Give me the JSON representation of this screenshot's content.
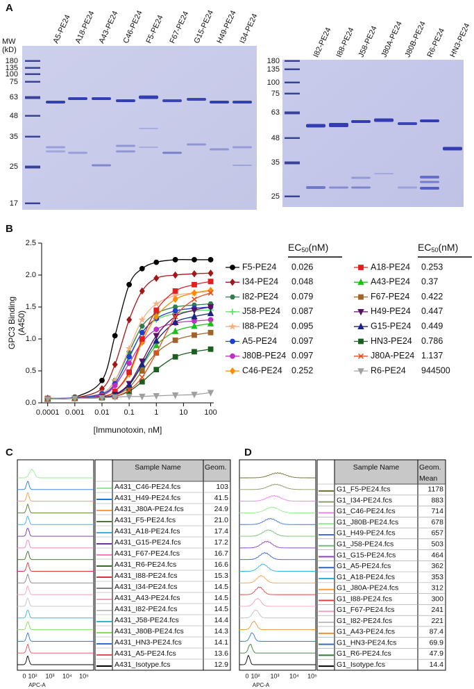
{
  "panel_labels": [
    "A",
    "B",
    "C",
    "D"
  ],
  "gel_left": {
    "mw_title": [
      "MW",
      "(kD)"
    ],
    "mw": [
      180,
      135,
      100,
      75,
      63,
      48,
      35,
      25,
      17
    ],
    "lanes": [
      "A5-PE24",
      "A18-PE24",
      "A43-PE24",
      "C46-PE24",
      "F5-PE24",
      "F67-PE24",
      "G15-PE24",
      "H49-PE24",
      "I34-PE24"
    ]
  },
  "gel_right": {
    "mw": [
      180,
      135,
      100,
      75,
      63,
      48,
      35,
      25
    ],
    "lanes": [
      "I82-PE24",
      "I88-PE24",
      "J58-PE24",
      "J80A-PE24",
      "J80B-PE24",
      "R6-PE24",
      "HN3-PE24"
    ]
  },
  "chart_data": {
    "type": "line",
    "y_label": [
      "GPC3 Binding",
      "(A450)"
    ],
    "x_label": "[Immunotoxin, nM]",
    "ec50_label": "EC",
    "ec50_sub": "50",
    "ec50_unit": "(nM)",
    "xscale": "log",
    "xlim": [
      6e-05,
      130
    ],
    "xticks": [
      0.0001,
      0.001,
      0.01,
      0.1,
      1,
      10,
      100
    ],
    "ylim": [
      0,
      2.5
    ],
    "yticks": [
      {
        "value": 0,
        "label": "0.0"
      },
      {
        "value": 0.5,
        "label": "0.5"
      },
      {
        "value": 1,
        "label": "1.0"
      },
      {
        "value": 1.5,
        "label": "1.5"
      },
      {
        "value": 2,
        "label": "2.0"
      },
      {
        "value": 2.5,
        "label": "2.5"
      }
    ],
    "x": [
      0.0001,
      0.001,
      0.01,
      0.03,
      0.1,
      0.3,
      1,
      5,
      25,
      100
    ],
    "series": [
      {
        "name": "F5-PE24",
        "ec50": 0.026,
        "color": "#000000",
        "marker": "circle",
        "values": [
          0.07,
          0.09,
          0.35,
          1.05,
          1.85,
          2.1,
          2.2,
          2.24,
          2.24,
          2.24
        ]
      },
      {
        "name": "I34-PE24",
        "ec50": 0.048,
        "color": "#a01818",
        "marker": "diamond",
        "values": [
          0.07,
          0.08,
          0.22,
          0.6,
          1.3,
          1.75,
          1.95,
          2.0,
          2.02,
          2.03
        ]
      },
      {
        "name": "I82-PE24",
        "ec50": 0.079,
        "color": "#2e7d4a",
        "marker": "hexagon",
        "values": [
          0.07,
          0.08,
          0.15,
          0.35,
          0.8,
          1.2,
          1.4,
          1.5,
          1.53,
          1.55
        ]
      },
      {
        "name": "J58-PE24",
        "ec50": 0.087,
        "color": "#5ce05c",
        "marker": "plus",
        "values": [
          0.06,
          0.07,
          0.13,
          0.3,
          0.7,
          1.1,
          1.3,
          1.4,
          1.44,
          1.45
        ]
      },
      {
        "name": "I88-PE24",
        "ec50": 0.095,
        "color": "#f4b183",
        "marker": "star",
        "values": [
          0.07,
          0.08,
          0.15,
          0.35,
          0.85,
          1.3,
          1.55,
          1.68,
          1.72,
          1.75
        ]
      },
      {
        "name": "A5-PE24",
        "ec50": 0.097,
        "color": "#1f3fcf",
        "marker": "circle",
        "values": [
          0.07,
          0.08,
          0.14,
          0.3,
          0.72,
          1.1,
          1.32,
          1.44,
          1.48,
          1.5
        ]
      },
      {
        "name": "J80B-PE24",
        "ec50": 0.097,
        "color": "#c030c0",
        "marker": "circle",
        "values": [
          0.06,
          0.07,
          0.12,
          0.27,
          0.62,
          0.95,
          1.15,
          1.25,
          1.28,
          1.3
        ]
      },
      {
        "name": "C46-PE24",
        "ec50": 0.252,
        "color": "#ff8c00",
        "marker": "diamond",
        "values": [
          0.07,
          0.07,
          0.1,
          0.18,
          0.45,
          0.95,
          1.35,
          1.62,
          1.72,
          1.76
        ]
      },
      {
        "name": "A18-PE24",
        "ec50": 0.253,
        "color": "#e02020",
        "marker": "square",
        "values": [
          0.07,
          0.07,
          0.1,
          0.18,
          0.48,
          1.0,
          1.45,
          1.75,
          1.85,
          1.9
        ]
      },
      {
        "name": "A43-PE24",
        "ec50": 0.37,
        "color": "#22bb22",
        "marker": "triangle",
        "values": [
          0.07,
          0.07,
          0.09,
          0.13,
          0.28,
          0.58,
          0.9,
          1.12,
          1.2,
          1.24
        ]
      },
      {
        "name": "F67-PE24",
        "ec50": 0.422,
        "color": "#a0632a",
        "marker": "square",
        "values": [
          0.06,
          0.07,
          0.08,
          0.12,
          0.24,
          0.5,
          0.78,
          0.98,
          1.06,
          1.1
        ]
      },
      {
        "name": "H49-PE24",
        "ec50": 0.447,
        "color": "#5a1060",
        "marker": "triangle-down",
        "values": [
          0.06,
          0.07,
          0.09,
          0.13,
          0.3,
          0.65,
          1.05,
          1.35,
          1.45,
          1.5
        ]
      },
      {
        "name": "G15-PE24",
        "ec50": 0.449,
        "color": "#1a237e",
        "marker": "triangle",
        "values": [
          0.06,
          0.07,
          0.09,
          0.12,
          0.28,
          0.6,
          0.97,
          1.26,
          1.35,
          1.4
        ]
      },
      {
        "name": "HN3-PE24",
        "ec50": 0.786,
        "color": "#1b5e20",
        "marker": "square",
        "values": [
          0.06,
          0.07,
          0.08,
          0.1,
          0.18,
          0.33,
          0.52,
          0.72,
          0.8,
          0.84
        ]
      },
      {
        "name": "J80A-PE24",
        "ec50": 1.137,
        "color": "#e85020",
        "marker": "x",
        "values": [
          0.06,
          0.07,
          0.08,
          0.1,
          0.2,
          0.4,
          0.78,
          1.35,
          1.62,
          1.72
        ]
      },
      {
        "name": "R6-PE24",
        "ec50": 944500,
        "color": "#a0a0a0",
        "marker": "triangle-down",
        "values": [
          0.06,
          0.07,
          0.08,
          0.09,
          0.1,
          0.1,
          0.11,
          0.12,
          0.13,
          0.16
        ]
      }
    ]
  },
  "flow_c": {
    "x_ticks": [
      "0",
      "10²",
      "10³",
      "10⁴",
      "10⁵"
    ],
    "x_title": "APC-A",
    "header": {
      "name": "Sample Name",
      "value": [
        "Geom."
      ]
    },
    "rows": [
      {
        "name": "A431_C46-PE24.fcs",
        "value": "103",
        "color": "#90ee90"
      },
      {
        "name": "A431_H49-PE24.fcs",
        "value": "41.5",
        "color": "#1f77d4"
      },
      {
        "name": "A431_J80A-PE24.fcs",
        "value": "24.9",
        "color": "#f5a040"
      },
      {
        "name": "A431_F5-PE24.fcs",
        "value": "21.0",
        "color": "#4a7a2a"
      },
      {
        "name": "A431_A18-PE24.fcs",
        "value": "17.4",
        "color": "#40b0e0"
      },
      {
        "name": "A431_G15-PE24.fcs",
        "value": "17.2",
        "color": "#7030a0"
      },
      {
        "name": "A431_F67-PE24.fcs",
        "value": "16.7",
        "color": "#f080c0"
      },
      {
        "name": "A431_R6-PE24.fcs",
        "value": "16.6",
        "color": "#2e6e1e"
      },
      {
        "name": "A431_I88-PE24.fcs",
        "value": "15.3",
        "color": "#e03030"
      },
      {
        "name": "A431_I34-PE24.fcs",
        "value": "14.5",
        "color": "#808080"
      },
      {
        "name": "A431_A43-PE24.fcs",
        "value": "14.5",
        "color": "#f4a0b8"
      },
      {
        "name": "A431_I82-PE24.fcs",
        "value": "14.5",
        "color": "#c0c0c0"
      },
      {
        "name": "A431_J58-PE24.fcs",
        "value": "14.4",
        "color": "#30b8d0"
      },
      {
        "name": "A431_J80B-PE24.fcs",
        "value": "14.3",
        "color": "#80e060"
      },
      {
        "name": "A431_HN3-PE24.fcs",
        "value": "14.1",
        "color": "#3070c0"
      },
      {
        "name": "A431_A5-PE24.fcs",
        "value": "13.6",
        "color": "#e05050"
      },
      {
        "name": "A431_Isotype.fcs",
        "value": "12.9",
        "color": "#000000"
      }
    ]
  },
  "flow_d": {
    "x_ticks": [
      "0",
      "10²",
      "10³",
      "10⁴",
      "10⁵"
    ],
    "x_title": "APC-A",
    "header": {
      "name": "Sample Name",
      "value": [
        "Geom.",
        "Mean"
      ]
    },
    "rows": [
      {
        "name": "G1_F5-PE24.fcs",
        "value": "1178",
        "color": "#6e6e2e"
      },
      {
        "name": "G1_I34-PE24.fcs",
        "value": "883",
        "color": "#8a9a6a"
      },
      {
        "name": "G1_C46-PE24.fcs",
        "value": "714",
        "color": "#ee82ee"
      },
      {
        "name": "G1_J80B-PE24.fcs",
        "value": "678",
        "color": "#90ee90"
      },
      {
        "name": "G1_H49-PE24.fcs",
        "value": "657",
        "color": "#4070e0"
      },
      {
        "name": "G1_J58-PE24.fcs",
        "value": "503",
        "color": "#70c070"
      },
      {
        "name": "G1_G15-PE24.fcs",
        "value": "464",
        "color": "#9040c0"
      },
      {
        "name": "G1_A5-PE24.fcs",
        "value": "362",
        "color": "#3060d0"
      },
      {
        "name": "G1_A18-PE24.fcs",
        "value": "353",
        "color": "#30b0e0"
      },
      {
        "name": "G1_J80A-PE24.fcs",
        "value": "312",
        "color": "#f5a040"
      },
      {
        "name": "G1_I88-PE24.fcs",
        "value": "300",
        "color": "#e04040"
      },
      {
        "name": "G1_F67-PE24.fcs",
        "value": "241",
        "color": "#f0a0c0"
      },
      {
        "name": "G1_I82-PE24.fcs",
        "value": "221",
        "color": "#c0c0c0"
      },
      {
        "name": "G1_A43-PE24.fcs",
        "value": "87.4",
        "color": "#f09030"
      },
      {
        "name": "G1_HN3-PE24.fcs",
        "value": "69.9",
        "color": "#3070c0"
      },
      {
        "name": "G1_R6-PE24.fcs",
        "value": "47.9",
        "color": "#2e7d32"
      },
      {
        "name": "G1_Isotype.fcs",
        "value": "14.4",
        "color": "#000000"
      }
    ]
  }
}
